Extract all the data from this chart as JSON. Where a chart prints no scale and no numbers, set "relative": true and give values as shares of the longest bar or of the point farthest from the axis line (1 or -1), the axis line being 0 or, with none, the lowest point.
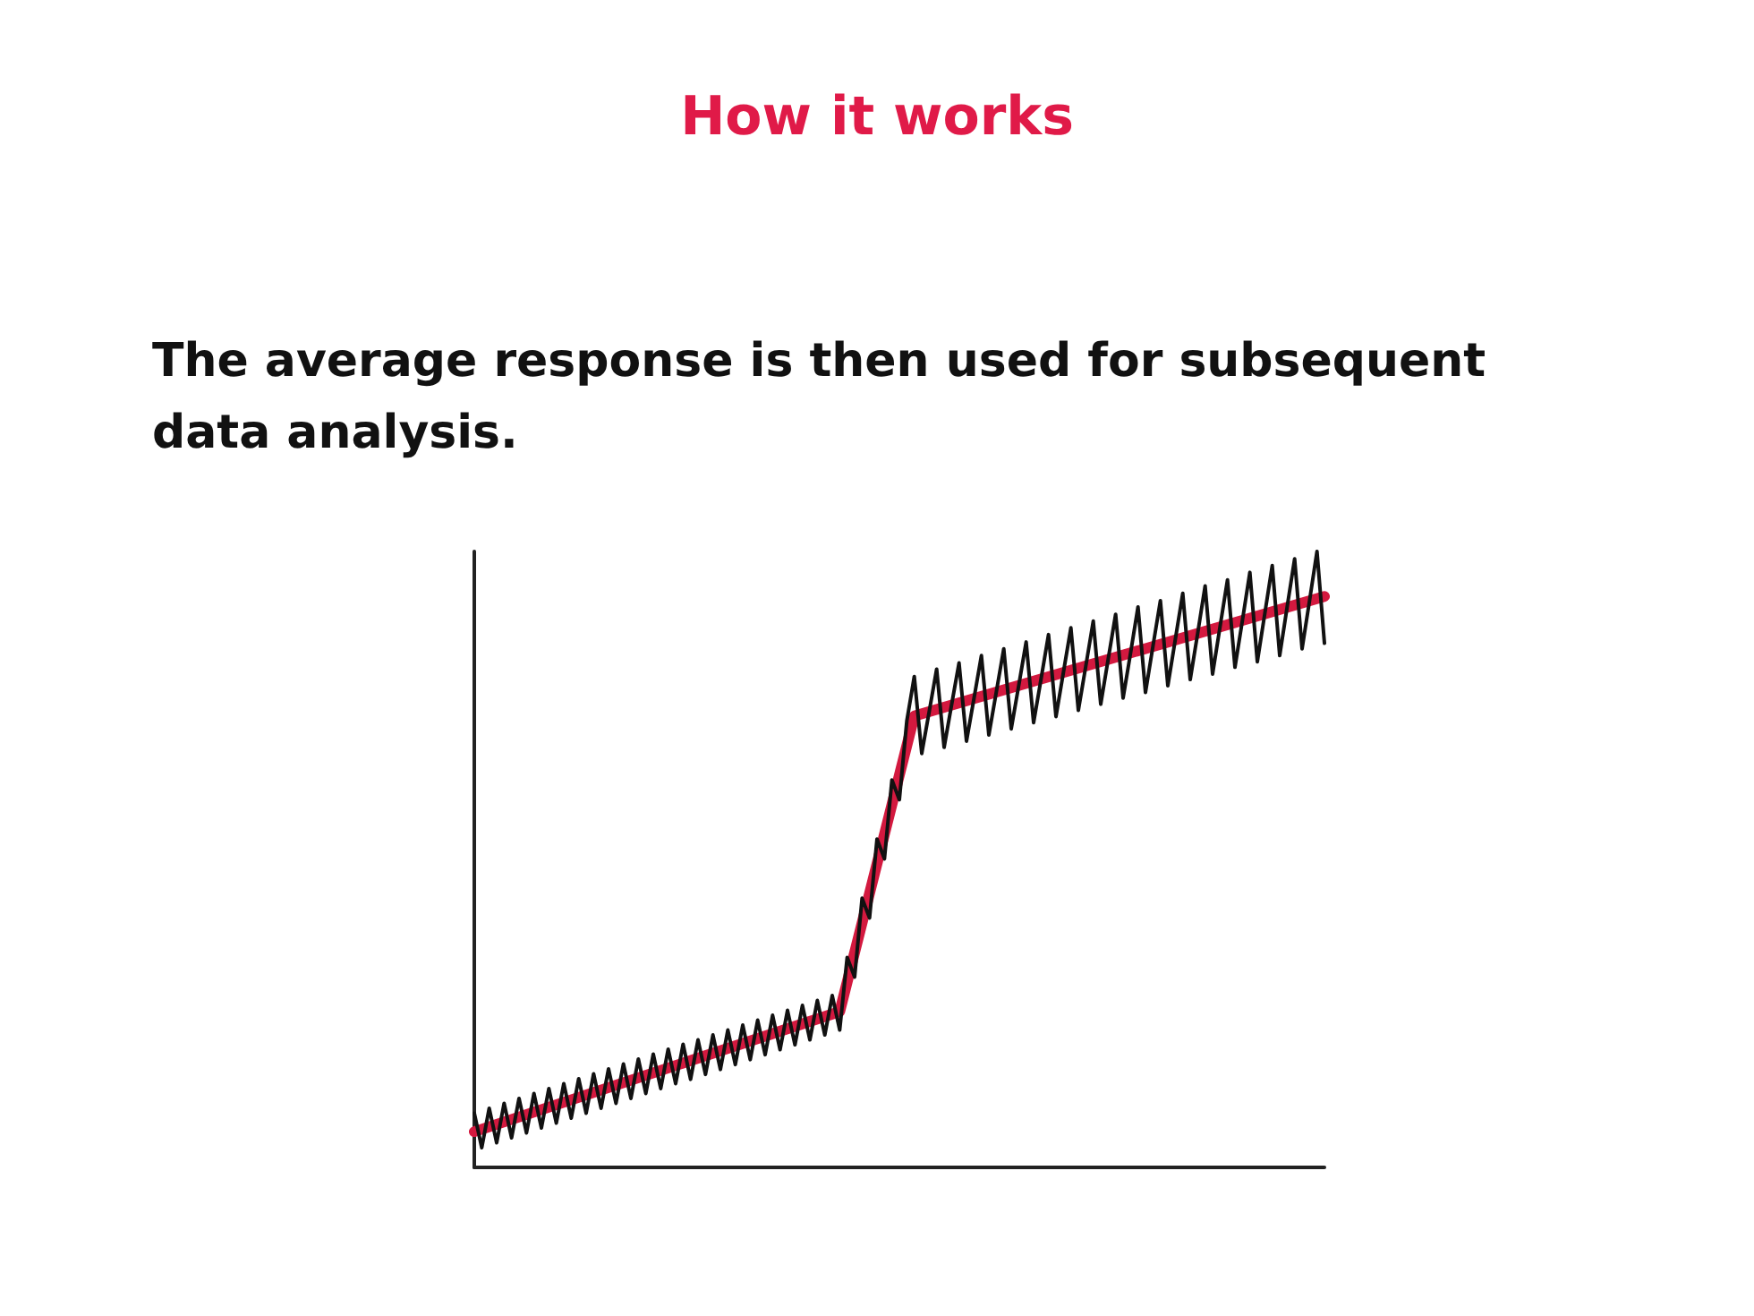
{
  "chart_data": {
    "type": "line",
    "title": "How it works",
    "subtitle": "The average response is then used for subsequent data analysis.",
    "relative": true,
    "grid": false,
    "marker": "none",
    "categories": [
      null,
      null,
      null,
      null,
      null,
      null,
      null,
      null,
      null,
      null,
      null,
      null,
      null,
      null,
      null,
      null,
      null,
      null,
      null,
      null,
      null,
      null,
      null,
      null,
      null,
      null,
      null,
      null,
      null,
      null,
      null,
      null,
      null,
      null,
      null,
      null,
      null,
      null,
      null,
      null,
      null,
      null,
      null,
      null,
      null,
      null,
      null,
      null,
      null,
      null,
      null,
      null,
      null,
      null,
      null,
      null,
      null,
      null,
      null,
      null,
      null,
      null,
      null,
      null,
      null,
      null,
      null,
      null,
      null,
      null,
      null,
      null,
      null,
      null,
      null,
      null,
      null,
      null,
      null,
      null,
      null,
      null,
      null,
      null,
      null,
      null,
      null,
      null,
      null,
      null,
      null,
      null,
      null,
      null,
      null,
      null,
      null,
      null,
      null,
      null,
      null,
      null,
      null,
      null,
      null,
      null,
      null,
      null,
      null,
      null,
      null,
      null,
      null,
      null,
      null
    ],
    "series": [
      {
        "color": "#111111",
        "values": [
          0.088,
          0.032,
          0.096,
          0.04,
          0.104,
          0.048,
          0.112,
          0.056,
          0.12,
          0.064,
          0.128,
          0.072,
          0.136,
          0.08,
          0.144,
          0.088,
          0.152,
          0.096,
          0.16,
          0.104,
          0.168,
          0.112,
          0.176,
          0.12,
          0.184,
          0.128,
          0.192,
          0.136,
          0.2,
          0.143,
          0.207,
          0.151,
          0.215,
          0.159,
          0.223,
          0.167,
          0.231,
          0.175,
          0.239,
          0.183,
          0.247,
          0.191,
          0.255,
          0.199,
          0.263,
          0.207,
          0.271,
          0.215,
          0.279,
          0.223,
          0.341,
          0.309,
          0.437,
          0.405,
          0.533,
          0.501,
          0.629,
          0.597,
          0.725,
          0.797,
          0.672,
          0.74,
          0.809,
          0.682,
          0.751,
          0.819,
          0.692,
          0.761,
          0.831,
          0.702,
          0.772,
          0.842,
          0.712,
          0.782,
          0.853,
          0.722,
          0.793,
          0.865,
          0.732,
          0.804,
          0.876,
          0.742,
          0.814,
          0.887,
          0.752,
          0.825,
          0.898,
          0.762,
          0.835,
          0.91,
          0.771,
          0.846,
          0.92,
          0.782,
          0.857,
          0.932,
          0.792,
          0.867,
          0.944,
          0.801,
          0.878,
          0.954,
          0.812,
          0.888,
          0.966,
          0.821,
          0.899,
          0.977,
          0.831,
          0.91,
          0.988,
          0.842,
          0.92,
          1.0,
          0.851
        ]
      },
      {
        "color": "#d3193f",
        "values": [
          0.058,
          null,
          null,
          null,
          null,
          null,
          null,
          null,
          null,
          null,
          null,
          null,
          null,
          null,
          null,
          null,
          null,
          null,
          null,
          null,
          null,
          null,
          null,
          null,
          null,
          null,
          null,
          null,
          null,
          null,
          null,
          null,
          null,
          null,
          null,
          null,
          null,
          null,
          null,
          null,
          null,
          null,
          null,
          null,
          null,
          null,
          null,
          null,
          null,
          0.253,
          null,
          null,
          null,
          null,
          null,
          null,
          null,
          null,
          null,
          0.733,
          null,
          null,
          null,
          null,
          null,
          null,
          null,
          null,
          null,
          null,
          null,
          null,
          null,
          null,
          null,
          null,
          null,
          null,
          null,
          null,
          null,
          null,
          null,
          null,
          null,
          null,
          null,
          null,
          null,
          null,
          null,
          null,
          null,
          null,
          null,
          null,
          null,
          null,
          null,
          null,
          null,
          null,
          null,
          null,
          null,
          null,
          null,
          null,
          null,
          null,
          null,
          null,
          null,
          null,
          0.927
        ]
      }
    ]
  }
}
